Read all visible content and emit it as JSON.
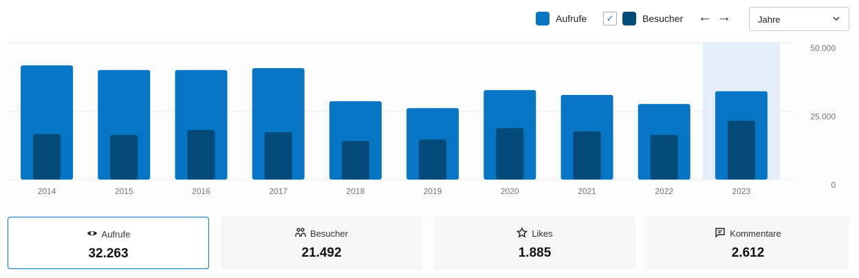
{
  "controls": {
    "legend": [
      {
        "label": "Aufrufe",
        "color": "#0675c4"
      },
      {
        "label": "Besucher",
        "color": "#044b7a",
        "checked": true
      }
    ],
    "prev_icon": "arrow-left-icon",
    "next_icon": "arrow-right-icon",
    "period_select": "Jahre"
  },
  "chart_data": {
    "type": "bar",
    "categories": [
      "2014",
      "2015",
      "2016",
      "2017",
      "2018",
      "2019",
      "2020",
      "2021",
      "2022",
      "2023"
    ],
    "series": [
      {
        "name": "Aufrufe",
        "color": "#0675c4",
        "values": [
          41700,
          40000,
          40000,
          40700,
          28600,
          26100,
          32700,
          30900,
          27600,
          32263
        ]
      },
      {
        "name": "Besucher",
        "color": "#044b7a",
        "values": [
          16600,
          16300,
          18100,
          17300,
          14100,
          14600,
          18800,
          17600,
          16300,
          21492
        ]
      }
    ],
    "ylim": [
      0,
      50000
    ],
    "yticks": [
      {
        "v": 0,
        "label": "0"
      },
      {
        "v": 25000,
        "label": "25.000"
      },
      {
        "v": 50000,
        "label": "50.000"
      }
    ],
    "highlighted": "2023",
    "grid": true
  },
  "cards": [
    {
      "label": "Aufrufe",
      "value": "32.263",
      "icon": "eye-icon",
      "active": true
    },
    {
      "label": "Besucher",
      "value": "21.492",
      "icon": "people-icon"
    },
    {
      "label": "Likes",
      "value": "1.885",
      "icon": "star-icon"
    },
    {
      "label": "Kommentare",
      "value": "2.612",
      "icon": "comment-icon"
    }
  ]
}
